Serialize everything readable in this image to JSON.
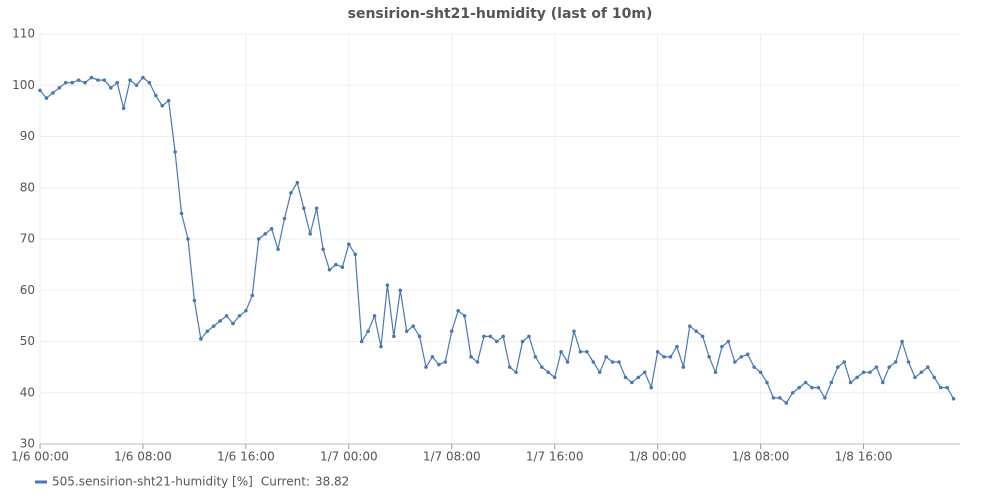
{
  "chart_data": {
    "type": "line",
    "title": "sensirion-sht21-humidity (last of 10m)",
    "x": [
      "1/6 00:00",
      "1/6 00:30",
      "1/6 01:00",
      "1/6 01:30",
      "1/6 02:00",
      "1/6 02:30",
      "1/6 03:00",
      "1/6 03:30",
      "1/6 04:00",
      "1/6 04:30",
      "1/6 05:00",
      "1/6 05:30",
      "1/6 06:00",
      "1/6 06:30",
      "1/6 07:00",
      "1/6 07:30",
      "1/6 08:00",
      "1/6 08:30",
      "1/6 09:00",
      "1/6 09:30",
      "1/6 10:00",
      "1/6 10:30",
      "1/6 11:00",
      "1/6 11:30",
      "1/6 12:00",
      "1/6 12:30",
      "1/6 13:00",
      "1/6 13:30",
      "1/6 14:00",
      "1/6 14:30",
      "1/6 15:00",
      "1/6 15:30",
      "1/6 16:00",
      "1/6 16:30",
      "1/6 17:00",
      "1/6 17:30",
      "1/6 18:00",
      "1/6 18:30",
      "1/6 19:00",
      "1/6 19:30",
      "1/6 20:00",
      "1/6 20:30",
      "1/6 21:00",
      "1/6 21:30",
      "1/6 22:00",
      "1/6 22:30",
      "1/6 23:00",
      "1/6 23:30",
      "1/7 00:00",
      "1/7 00:30",
      "1/7 01:00",
      "1/7 01:30",
      "1/7 02:00",
      "1/7 02:30",
      "1/7 03:00",
      "1/7 03:30",
      "1/7 04:00",
      "1/7 04:30",
      "1/7 05:00",
      "1/7 05:30",
      "1/7 06:00",
      "1/7 06:30",
      "1/7 07:00",
      "1/7 07:30",
      "1/7 08:00",
      "1/7 08:30",
      "1/7 09:00",
      "1/7 09:30",
      "1/7 10:00",
      "1/7 10:30",
      "1/7 11:00",
      "1/7 11:30",
      "1/7 12:00",
      "1/7 12:30",
      "1/7 13:00",
      "1/7 13:30",
      "1/7 14:00",
      "1/7 14:30",
      "1/7 15:00",
      "1/7 15:30",
      "1/7 16:00",
      "1/7 16:30",
      "1/7 17:00",
      "1/7 17:30",
      "1/7 18:00",
      "1/7 18:30",
      "1/7 19:00",
      "1/7 19:30",
      "1/7 20:00",
      "1/7 20:30",
      "1/7 21:00",
      "1/7 21:30",
      "1/7 22:00",
      "1/7 22:30",
      "1/7 23:00",
      "1/7 23:30",
      "1/8 00:00",
      "1/8 00:30",
      "1/8 01:00",
      "1/8 01:30",
      "1/8 02:00",
      "1/8 02:30",
      "1/8 03:00",
      "1/8 03:30",
      "1/8 04:00",
      "1/8 04:30",
      "1/8 05:00",
      "1/8 05:30",
      "1/8 06:00",
      "1/8 06:30",
      "1/8 07:00",
      "1/8 07:30",
      "1/8 08:00",
      "1/8 08:30",
      "1/8 09:00",
      "1/8 09:30",
      "1/8 10:00",
      "1/8 10:30",
      "1/8 11:00",
      "1/8 11:30",
      "1/8 12:00",
      "1/8 12:30",
      "1/8 13:00",
      "1/8 13:30",
      "1/8 14:00",
      "1/8 14:30",
      "1/8 15:00",
      "1/8 15:30",
      "1/8 16:00",
      "1/8 16:30",
      "1/8 17:00",
      "1/8 17:30",
      "1/8 18:00",
      "1/8 18:30",
      "1/8 19:00",
      "1/8 19:30",
      "1/8 20:00",
      "1/8 20:30",
      "1/8 21:00",
      "1/8 21:30",
      "1/8 22:00",
      "1/8 22:30",
      "1/8 23:00"
    ],
    "series": [
      {
        "name": "505.sensirion-sht21-humidity [%]",
        "color": "#4a78b5",
        "values": [
          99,
          97.5,
          98.5,
          99.5,
          100.5,
          100.5,
          101,
          100.5,
          101.5,
          101,
          101,
          99.5,
          100.5,
          95.5,
          101,
          100,
          101.5,
          100.5,
          98,
          96,
          97,
          87,
          75,
          70,
          58,
          50.5,
          52,
          53,
          54,
          55,
          53.5,
          55,
          56,
          59,
          70,
          71,
          72,
          68,
          74,
          79,
          81,
          76,
          71,
          76,
          68,
          64,
          65,
          64.5,
          69,
          67,
          50,
          52,
          55,
          49,
          61,
          51,
          60,
          52,
          53,
          51,
          45,
          47,
          45.5,
          46,
          52,
          56,
          55,
          47,
          46,
          51,
          51,
          50,
          51,
          45,
          44,
          50,
          51,
          47,
          45,
          44,
          43,
          48,
          46,
          52,
          48,
          48,
          46,
          44,
          47,
          46,
          46,
          43,
          42,
          43,
          44,
          41,
          48,
          47,
          47,
          49,
          45,
          53,
          52,
          51,
          47,
          44,
          49,
          50,
          46,
          47,
          47.5,
          45,
          44,
          42,
          39,
          39,
          38,
          40,
          41,
          42,
          41,
          41,
          39,
          42,
          45,
          46,
          42,
          43,
          44,
          44,
          45,
          42,
          45,
          46,
          50,
          46,
          43,
          44,
          45,
          43,
          41,
          41,
          38.82
        ]
      }
    ],
    "current_label": "Current:",
    "current": 38.82,
    "xlim": [
      "1/6 00:00",
      "1/8 23:30"
    ],
    "xticks": [
      "1/6 00:00",
      "1/6 08:00",
      "1/6 16:00",
      "1/7 00:00",
      "1/7 08:00",
      "1/7 16:00",
      "1/8 00:00",
      "1/8 08:00",
      "1/8 16:00"
    ],
    "ylim": [
      30,
      110
    ],
    "yticks": [
      30,
      40,
      50,
      60,
      70,
      80,
      90,
      100,
      110
    ],
    "grid": true
  }
}
